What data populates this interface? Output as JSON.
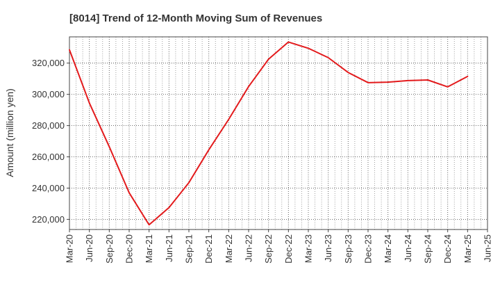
{
  "chart_data": {
    "type": "line",
    "title": "[8014]  Trend of 12-Month Moving Sum of Revenues",
    "xlabel": "",
    "ylabel": "Amount (million yen)",
    "ylim": [
      213500,
      336800
    ],
    "yticks": [
      220000,
      240000,
      260000,
      280000,
      300000,
      320000
    ],
    "ytick_labels": [
      "220,000",
      "240,000",
      "260,000",
      "280,000",
      "300,000",
      "320,000"
    ],
    "xtick_labels": [
      "Mar-20",
      "Jun-20",
      "Sep-20",
      "Dec-20",
      "Mar-21",
      "Jun-21",
      "Sep-21",
      "Dec-21",
      "Mar-22",
      "Jun-22",
      "Sep-22",
      "Dec-22",
      "Mar-23",
      "Jun-23",
      "Sep-23",
      "Dec-23",
      "Mar-24",
      "Jun-24",
      "Sep-24",
      "Dec-24",
      "Mar-25",
      "Jun-25"
    ],
    "grid": true,
    "series": [
      {
        "color": "#e31a1c",
        "x": [
          "Mar-20",
          "Jun-20",
          "Sep-20",
          "Dec-20",
          "Mar-21",
          "Jun-21",
          "Sep-21",
          "Dec-21",
          "Mar-22",
          "Jun-22",
          "Sep-22",
          "Dec-22",
          "Mar-23",
          "Jun-23",
          "Sep-23",
          "Dec-23",
          "Mar-24",
          "Jun-24",
          "Sep-24",
          "Dec-24",
          "Mar-25"
        ],
        "values": [
          328500,
          294500,
          266500,
          237000,
          216500,
          227500,
          243500,
          264500,
          284000,
          305000,
          322500,
          333500,
          329500,
          323500,
          314000,
          307500,
          307800,
          308800,
          309200,
          304800,
          311500
        ]
      }
    ]
  }
}
